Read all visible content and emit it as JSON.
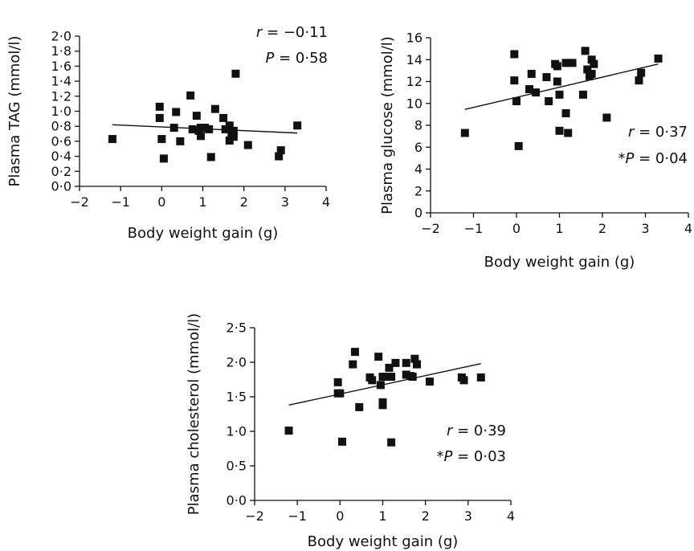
{
  "chart_data": [
    {
      "id": "tag",
      "type": "scatter",
      "xlabel": "Body weight gain (g)",
      "ylabel": "Plasma TAG (mmol/l)",
      "xlim": [
        -2,
        4
      ],
      "ylim": [
        0,
        2
      ],
      "x_ticks": [
        "−2",
        "−1",
        "0",
        "1",
        "2",
        "3",
        "4"
      ],
      "x_tick_values": [
        -2,
        -1,
        0,
        1,
        2,
        3,
        4
      ],
      "y_ticks": [
        "0·0",
        "0·2",
        "0·4",
        "0·6",
        "0·8",
        "1·0",
        "1·2",
        "1·4",
        "1·6",
        "1·8",
        "2·0"
      ],
      "y_tick_values": [
        0,
        0.2,
        0.4,
        0.6,
        0.8,
        1.0,
        1.2,
        1.4,
        1.6,
        1.8,
        2.0
      ],
      "stat_r_label": "r",
      "stat_r_value": " = −0·11",
      "stat_p_prefix": "",
      "stat_p_label": "P",
      "stat_p_value": " = 0·58",
      "stats_position": "top-right",
      "trendline": {
        "x": [
          -1.2,
          3.3
        ],
        "y": [
          0.82,
          0.71
        ]
      },
      "points": [
        {
          "x": -1.2,
          "y": 0.63
        },
        {
          "x": -0.05,
          "y": 1.06
        },
        {
          "x": -0.05,
          "y": 0.91
        },
        {
          "x": 0.0,
          "y": 0.63
        },
        {
          "x": 0.05,
          "y": 0.37
        },
        {
          "x": 0.3,
          "y": 0.78
        },
        {
          "x": 0.35,
          "y": 0.99
        },
        {
          "x": 0.45,
          "y": 0.6
        },
        {
          "x": 0.7,
          "y": 1.21
        },
        {
          "x": 0.75,
          "y": 0.76
        },
        {
          "x": 0.85,
          "y": 0.94
        },
        {
          "x": 0.9,
          "y": 0.74
        },
        {
          "x": 0.95,
          "y": 0.78
        },
        {
          "x": 0.95,
          "y": 0.67
        },
        {
          "x": 1.05,
          "y": 0.78
        },
        {
          "x": 1.15,
          "y": 0.76
        },
        {
          "x": 1.2,
          "y": 0.39
        },
        {
          "x": 1.3,
          "y": 1.03
        },
        {
          "x": 1.5,
          "y": 0.91
        },
        {
          "x": 1.55,
          "y": 0.76
        },
        {
          "x": 1.65,
          "y": 0.61
        },
        {
          "x": 1.65,
          "y": 0.81
        },
        {
          "x": 1.7,
          "y": 0.7
        },
        {
          "x": 1.75,
          "y": 0.66
        },
        {
          "x": 1.75,
          "y": 0.74
        },
        {
          "x": 1.8,
          "y": 1.5
        },
        {
          "x": 2.1,
          "y": 0.55
        },
        {
          "x": 2.85,
          "y": 0.4
        },
        {
          "x": 2.9,
          "y": 0.48
        },
        {
          "x": 3.3,
          "y": 0.81
        }
      ]
    },
    {
      "id": "glucose",
      "type": "scatter",
      "xlabel": "Body weight gain (g)",
      "ylabel": "Plasma glucose (mmol/l)",
      "xlim": [
        -2,
        4
      ],
      "ylim": [
        0,
        16
      ],
      "x_ticks": [
        "−2",
        "−1",
        "0",
        "1",
        "2",
        "3",
        "4"
      ],
      "x_tick_values": [
        -2,
        -1,
        0,
        1,
        2,
        3,
        4
      ],
      "y_ticks": [
        "0",
        "2",
        "4",
        "6",
        "8",
        "10",
        "12",
        "14",
        "16"
      ],
      "y_tick_values": [
        0,
        2,
        4,
        6,
        8,
        10,
        12,
        14,
        16
      ],
      "stat_r_label": "r",
      "stat_r_value": " = 0·37",
      "stat_p_prefix": "*",
      "stat_p_label": "P",
      "stat_p_value": " = 0·04",
      "stats_position": "bottom-right",
      "trendline": {
        "x": [
          -1.2,
          3.3
        ],
        "y": [
          9.45,
          13.6
        ]
      },
      "points": [
        {
          "x": -1.2,
          "y": 7.3
        },
        {
          "x": -0.05,
          "y": 14.5
        },
        {
          "x": -0.05,
          "y": 12.1
        },
        {
          "x": 0.0,
          "y": 10.2
        },
        {
          "x": 0.05,
          "y": 6.1
        },
        {
          "x": 0.3,
          "y": 11.3
        },
        {
          "x": 0.35,
          "y": 12.7
        },
        {
          "x": 0.45,
          "y": 11.0
        },
        {
          "x": 0.7,
          "y": 12.4
        },
        {
          "x": 0.75,
          "y": 10.2
        },
        {
          "x": 0.9,
          "y": 13.6
        },
        {
          "x": 0.95,
          "y": 13.4
        },
        {
          "x": 0.95,
          "y": 12.0
        },
        {
          "x": 1.0,
          "y": 7.5
        },
        {
          "x": 1.0,
          "y": 10.8
        },
        {
          "x": 1.15,
          "y": 9.1
        },
        {
          "x": 1.15,
          "y": 13.7
        },
        {
          "x": 1.2,
          "y": 7.3
        },
        {
          "x": 1.3,
          "y": 13.7
        },
        {
          "x": 1.55,
          "y": 10.8
        },
        {
          "x": 1.6,
          "y": 14.8
        },
        {
          "x": 1.65,
          "y": 13.1
        },
        {
          "x": 1.7,
          "y": 12.5
        },
        {
          "x": 1.75,
          "y": 12.7
        },
        {
          "x": 1.75,
          "y": 14.0
        },
        {
          "x": 1.8,
          "y": 13.6
        },
        {
          "x": 2.1,
          "y": 8.7
        },
        {
          "x": 2.85,
          "y": 12.1
        },
        {
          "x": 2.9,
          "y": 12.8
        },
        {
          "x": 3.3,
          "y": 14.1
        }
      ]
    },
    {
      "id": "cholesterol",
      "type": "scatter",
      "xlabel": "Body weight gain (g)",
      "ylabel": "Plasma cholesterol (mmol/l)",
      "xlim": [
        -2,
        4
      ],
      "ylim": [
        0,
        2.5
      ],
      "x_ticks": [
        "−2",
        "−1",
        "0",
        "1",
        "2",
        "3",
        "4"
      ],
      "x_tick_values": [
        -2,
        -1,
        0,
        1,
        2,
        3,
        4
      ],
      "y_ticks": [
        "0·0",
        "0·5",
        "1·0",
        "1·5",
        "2·0",
        "2·5"
      ],
      "y_tick_values": [
        0,
        0.5,
        1.0,
        1.5,
        2.0,
        2.5
      ],
      "stat_r_label": "r",
      "stat_r_value": " = 0·39",
      "stat_p_prefix": "*",
      "stat_p_label": "P",
      "stat_p_value": " = 0·03",
      "stats_position": "bottom-right",
      "trendline": {
        "x": [
          -1.2,
          3.3
        ],
        "y": [
          1.38,
          1.98
        ]
      },
      "points": [
        {
          "x": -1.2,
          "y": 1.01
        },
        {
          "x": -0.05,
          "y": 1.71
        },
        {
          "x": -0.05,
          "y": 1.55
        },
        {
          "x": 0.0,
          "y": 1.55
        },
        {
          "x": 0.05,
          "y": 0.85
        },
        {
          "x": 0.3,
          "y": 1.97
        },
        {
          "x": 0.35,
          "y": 2.15
        },
        {
          "x": 0.45,
          "y": 1.35
        },
        {
          "x": 0.7,
          "y": 1.78
        },
        {
          "x": 0.75,
          "y": 1.74
        },
        {
          "x": 0.9,
          "y": 2.08
        },
        {
          "x": 0.95,
          "y": 1.67
        },
        {
          "x": 1.0,
          "y": 1.42
        },
        {
          "x": 1.0,
          "y": 1.38
        },
        {
          "x": 1.0,
          "y": 1.79
        },
        {
          "x": 1.1,
          "y": 1.79
        },
        {
          "x": 1.15,
          "y": 1.92
        },
        {
          "x": 1.2,
          "y": 1.79
        },
        {
          "x": 1.2,
          "y": 0.84
        },
        {
          "x": 1.3,
          "y": 1.99
        },
        {
          "x": 1.55,
          "y": 1.82
        },
        {
          "x": 1.55,
          "y": 1.99
        },
        {
          "x": 1.65,
          "y": 1.8
        },
        {
          "x": 1.7,
          "y": 1.79
        },
        {
          "x": 1.75,
          "y": 2.05
        },
        {
          "x": 1.8,
          "y": 1.97
        },
        {
          "x": 2.1,
          "y": 1.72
        },
        {
          "x": 2.85,
          "y": 1.78
        },
        {
          "x": 2.9,
          "y": 1.74
        },
        {
          "x": 3.3,
          "y": 1.78
        }
      ]
    }
  ]
}
